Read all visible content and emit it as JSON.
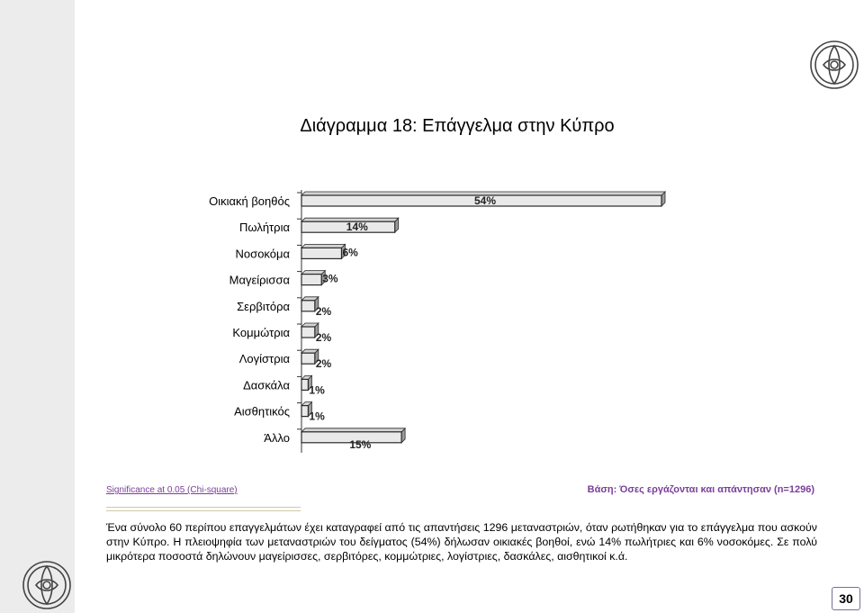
{
  "page": {
    "title": "Διάγραμμα 18: Επάγγελμα στην Κύπρο",
    "significance": "Significance at 0.05 (Chi-square)",
    "basis": "Βάση: Όσες εργάζονται και απάντησαν (n=1296)",
    "body_text": "Ένα σύνολο 60 περίπου επαγγελμάτων έχει καταγραφεί από τις απαντήσεις 1296 μεταναστριών, όταν ρωτήθηκαν για το επάγγελμα που ασκούν στην Κύπρο. Η πλειοψηφία των μεταναστριών του δείγματος (54%) δήλωσαν οικιακές βοηθοί, ενώ 14% πωλήτριες και 6% νοσοκόμες. Σε πολύ μικρότερα ποσοστά δηλώνουν μαγείρισσες, σερβιτόρες, κομμώτριες, λογίστριες, δασκάλες, αισθητικοί κ.ά.",
    "page_number": "30"
  },
  "chart_data": {
    "type": "bar",
    "orientation": "horizontal",
    "title": "Διάγραμμα 18: Επάγγελμα στην Κύπρο",
    "categories": [
      "Οικιακή βοηθός",
      "Πωλήτρια",
      "Νοσοκόμα",
      "Μαγείρισσα",
      "Σερβιτόρα",
      "Κομμώτρια",
      "Λογίστρια",
      "Δασκάλα",
      "Αισθητικός",
      "Άλλο"
    ],
    "values": [
      54,
      14,
      6,
      3,
      2,
      2,
      2,
      1,
      1,
      15
    ],
    "labels": [
      "54%",
      "14%",
      "6%",
      "3%",
      "2%",
      "2%",
      "2%",
      "1%",
      "1%",
      "15%"
    ],
    "xlim": [
      0,
      54
    ],
    "grid": false,
    "style": "3d",
    "colors": {
      "bar_face": "#e9e9e9",
      "bar_edge": "#2a2a2a",
      "bar_depth": "#9c9c9c"
    }
  }
}
